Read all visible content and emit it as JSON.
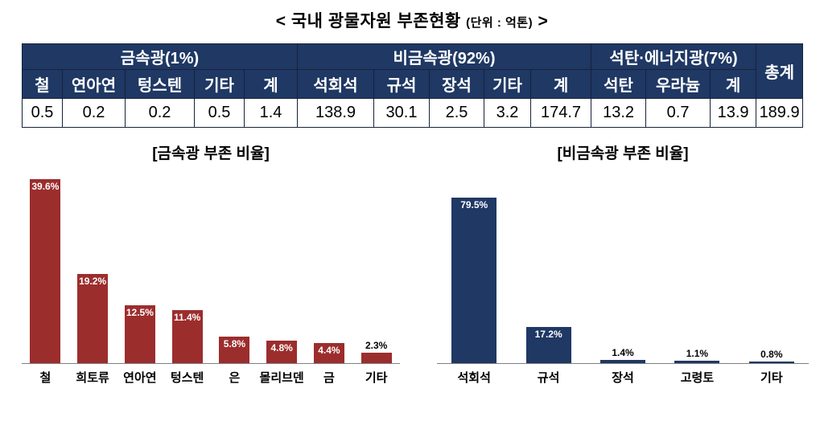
{
  "title": {
    "main": "< 국내 광물자원 부존현황",
    "unit": "(단위 : 억톤)",
    "suffix": ">"
  },
  "colors": {
    "table_header_bg": "#1f3864",
    "metal_bar": "#9c2d2d",
    "nonmetal_bar": "#1f3864"
  },
  "table": {
    "groups": [
      {
        "label": "금속광(1%)"
      },
      {
        "label": "비금속광(92%)"
      },
      {
        "label": "석탄·에너지광(7%)"
      }
    ],
    "total_label": "총계",
    "headers": [
      "철",
      "연아연",
      "텅스텐",
      "기타",
      "계",
      "석회석",
      "규석",
      "장석",
      "기타",
      "계",
      "석탄",
      "우라늄",
      "계"
    ],
    "values": [
      "0.5",
      "0.2",
      "0.2",
      "0.5",
      "1.4",
      "138.9",
      "30.1",
      "2.5",
      "3.2",
      "174.7",
      "13.2",
      "0.7",
      "13.9",
      "189.9"
    ]
  },
  "chart_data": [
    {
      "type": "bar",
      "title": "[금속광 부존 비율]",
      "categories": [
        "철",
        "희토류",
        "연아연",
        "텅스텐",
        "은",
        "몰리브덴",
        "금",
        "기타"
      ],
      "values": [
        39.6,
        19.2,
        12.5,
        11.4,
        5.8,
        4.8,
        4.4,
        2.3
      ],
      "value_labels": [
        "39.6%",
        "19.2%",
        "12.5%",
        "11.4%",
        "5.8%",
        "4.8%",
        "4.4%",
        "2.3%"
      ],
      "bar_color": "#9c2d2d",
      "ylim": [
        0,
        40
      ],
      "legend": "none",
      "grid": "off"
    },
    {
      "type": "bar",
      "title": "[비금속광 부존 비율]",
      "categories": [
        "석회석",
        "규석",
        "장석",
        "고령토",
        "기타"
      ],
      "values": [
        79.5,
        17.2,
        1.4,
        1.1,
        0.8
      ],
      "value_labels": [
        "79.5%",
        "17.2%",
        "1.4%",
        "1.1%",
        "0.8%"
      ],
      "bar_color": "#1f3864",
      "ylim": [
        0,
        89
      ],
      "legend": "none",
      "grid": "off"
    }
  ]
}
